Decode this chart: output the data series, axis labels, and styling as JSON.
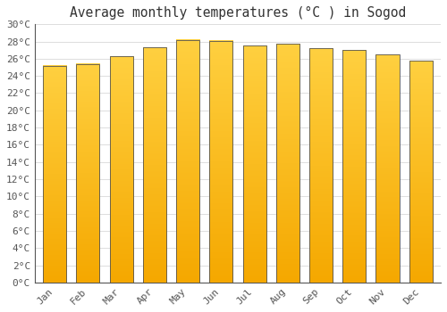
{
  "title": "Average monthly temperatures (°C ) in Sogod",
  "months": [
    "Jan",
    "Feb",
    "Mar",
    "Apr",
    "May",
    "Jun",
    "Jul",
    "Aug",
    "Sep",
    "Oct",
    "Nov",
    "Dec"
  ],
  "values": [
    25.2,
    25.4,
    26.3,
    27.3,
    28.2,
    28.1,
    27.5,
    27.7,
    27.2,
    27.0,
    26.5,
    25.8
  ],
  "bar_color_bottom": "#F5A800",
  "bar_color_top": "#FFD040",
  "bar_edge_color": "#555555",
  "background_color": "#FFFFFF",
  "grid_color": "#DDDDDD",
  "ylim": [
    0,
    30
  ],
  "yticks": [
    0,
    2,
    4,
    6,
    8,
    10,
    12,
    14,
    16,
    18,
    20,
    22,
    24,
    26,
    28,
    30
  ],
  "title_fontsize": 10.5,
  "tick_fontsize": 8,
  "font_family": "monospace"
}
